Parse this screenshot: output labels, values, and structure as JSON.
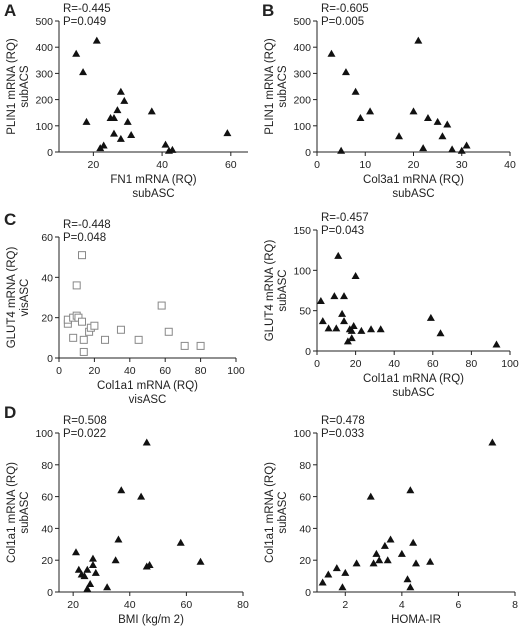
{
  "chart_data": [
    {
      "id": "A1",
      "panel_letter": "A",
      "type": "scatter",
      "marker": "triangle",
      "stats": [
        "R=-0.445",
        "P=0.049"
      ],
      "xlabel": [
        "FN1 mRNA (RQ)",
        "subASC"
      ],
      "ylabel": [
        "PLIN1 mRNA (RQ)",
        "subACS"
      ],
      "xlim": [
        10,
        65
      ],
      "xticks": [
        "20",
        "40",
        "60"
      ],
      "ylim": [
        0,
        500
      ],
      "yticks": [
        "0",
        "100",
        "200",
        "300",
        "400",
        "500"
      ],
      "points": [
        [
          15,
          375
        ],
        [
          17,
          305
        ],
        [
          18,
          115
        ],
        [
          21,
          425
        ],
        [
          22,
          15
        ],
        [
          23,
          25
        ],
        [
          25,
          130
        ],
        [
          26,
          130
        ],
        [
          26,
          70
        ],
        [
          27,
          160
        ],
        [
          28,
          230
        ],
        [
          28,
          50
        ],
        [
          29,
          195
        ],
        [
          30,
          115
        ],
        [
          31,
          65
        ],
        [
          37,
          155
        ],
        [
          41,
          28
        ],
        [
          42,
          5
        ],
        [
          43,
          8
        ],
        [
          59,
          72
        ]
      ]
    },
    {
      "id": "B1",
      "panel_letter": "B",
      "type": "scatter",
      "marker": "triangle",
      "stats": [
        "R=-0.605",
        "P=0.005"
      ],
      "xlabel": [
        "Col3a1 mRNA (RQ)",
        "subASC"
      ],
      "ylabel": [
        "PLIN1 mRNA (RQ)",
        "subACS"
      ],
      "xlim": [
        0,
        40
      ],
      "xticks": [
        "0",
        "10",
        "20",
        "30",
        "40"
      ],
      "ylim": [
        0,
        500
      ],
      "yticks": [
        "0",
        "100",
        "200",
        "300",
        "400",
        "500"
      ],
      "points": [
        [
          3,
          375
        ],
        [
          5,
          5
        ],
        [
          6,
          305
        ],
        [
          8,
          230
        ],
        [
          9,
          130
        ],
        [
          11,
          155
        ],
        [
          17,
          60
        ],
        [
          20,
          155
        ],
        [
          21,
          425
        ],
        [
          22,
          15
        ],
        [
          23,
          130
        ],
        [
          25,
          115
        ],
        [
          26,
          60
        ],
        [
          27,
          105
        ],
        [
          28,
          10
        ],
        [
          30,
          5
        ],
        [
          31,
          25
        ]
      ]
    },
    {
      "id": "C1",
      "panel_letter": "C",
      "type": "scatter",
      "marker": "open-square",
      "stats": [
        "R=-0.448",
        "P=0.048"
      ],
      "xlabel": [
        "Col1a1 mRNA (RQ)",
        "visASC"
      ],
      "ylabel": [
        "GLUT4 mRNA (RQ)",
        "visASC"
      ],
      "xlim": [
        0,
        100
      ],
      "xticks": [
        "0",
        "20",
        "40",
        "60",
        "80",
        "100"
      ],
      "ylim": [
        0,
        60
      ],
      "yticks": [
        "0",
        "20",
        "40",
        "60"
      ],
      "points": [
        [
          5,
          17
        ],
        [
          5,
          19
        ],
        [
          8,
          10
        ],
        [
          8,
          20
        ],
        [
          10,
          21
        ],
        [
          10,
          36
        ],
        [
          11,
          20
        ],
        [
          13,
          51
        ],
        [
          13,
          18
        ],
        [
          14,
          3
        ],
        [
          14,
          9
        ],
        [
          17,
          13
        ],
        [
          18,
          15
        ],
        [
          20,
          16
        ],
        [
          26,
          9
        ],
        [
          35,
          14
        ],
        [
          45,
          9
        ],
        [
          58,
          26
        ],
        [
          62,
          13
        ],
        [
          71,
          6
        ],
        [
          80,
          6
        ]
      ]
    },
    {
      "id": "C2",
      "panel_letter": "",
      "type": "scatter",
      "marker": "triangle",
      "stats": [
        "R=-0.457",
        "P=0.043"
      ],
      "xlabel": [
        "Col1a1 mRNA (RQ)",
        "subASC"
      ],
      "ylabel": [
        "GLUT4 mRNA (RQ)",
        "subASC"
      ],
      "xlim": [
        0,
        100
      ],
      "xticks": [
        "0",
        "20",
        "40",
        "60",
        "80",
        "100"
      ],
      "ylim": [
        0,
        150
      ],
      "yticks": [
        "0",
        "50",
        "100",
        "150"
      ],
      "points": [
        [
          2,
          62
        ],
        [
          3,
          37
        ],
        [
          6,
          28
        ],
        [
          9,
          68
        ],
        [
          10,
          28
        ],
        [
          11,
          118
        ],
        [
          13,
          46
        ],
        [
          14,
          37
        ],
        [
          14,
          68
        ],
        [
          16,
          12
        ],
        [
          17,
          27
        ],
        [
          18,
          16
        ],
        [
          18,
          25
        ],
        [
          19,
          31
        ],
        [
          20,
          93
        ],
        [
          23,
          25
        ],
        [
          28,
          27
        ],
        [
          33,
          27
        ],
        [
          59,
          41
        ],
        [
          64,
          22
        ],
        [
          93,
          8
        ]
      ]
    },
    {
      "id": "D1",
      "panel_letter": "D",
      "type": "scatter",
      "marker": "triangle",
      "stats": [
        "R=0.508",
        "P=0.022"
      ],
      "xlabel": [
        "BMI (kg/m 2)"
      ],
      "ylabel": [
        "Col1a1 mRNA (RQ)",
        "subASC"
      ],
      "xlim": [
        15,
        80
      ],
      "xticks": [
        "20",
        "40",
        "60",
        "80"
      ],
      "ylim": [
        0,
        100
      ],
      "yticks": [
        "0",
        "20",
        "40",
        "60",
        "80",
        "100"
      ],
      "points": [
        [
          21,
          25
        ],
        [
          22,
          14
        ],
        [
          23,
          11
        ],
        [
          24,
          10
        ],
        [
          25,
          14
        ],
        [
          25,
          2
        ],
        [
          26,
          5
        ],
        [
          27,
          21
        ],
        [
          27,
          17
        ],
        [
          28,
          12
        ],
        [
          32,
          3
        ],
        [
          35,
          20
        ],
        [
          36,
          33
        ],
        [
          37,
          64
        ],
        [
          44,
          60
        ],
        [
          46,
          94
        ],
        [
          46,
          16
        ],
        [
          47,
          17
        ],
        [
          58,
          31
        ],
        [
          65,
          19
        ]
      ]
    },
    {
      "id": "D2",
      "panel_letter": "",
      "type": "scatter",
      "marker": "triangle",
      "stats": [
        "R=0.478",
        "P=0.033"
      ],
      "xlabel": [
        "HOMA-IR"
      ],
      "ylabel": [
        "Col1a1 mRNA (RQ)",
        "subASC"
      ],
      "xlim": [
        1,
        8
      ],
      "xticks": [
        "2",
        "4",
        "6",
        "8"
      ],
      "ylim": [
        0,
        100
      ],
      "yticks": [
        "0",
        "20",
        "40",
        "60",
        "80",
        "100"
      ],
      "points": [
        [
          1.2,
          6
        ],
        [
          1.4,
          11
        ],
        [
          1.7,
          15
        ],
        [
          1.9,
          3
        ],
        [
          2.0,
          12
        ],
        [
          2.4,
          18
        ],
        [
          2.9,
          60
        ],
        [
          3.0,
          18
        ],
        [
          3.1,
          24
        ],
        [
          3.2,
          20
        ],
        [
          3.4,
          29
        ],
        [
          3.5,
          20
        ],
        [
          3.6,
          33
        ],
        [
          4.0,
          24
        ],
        [
          4.2,
          8
        ],
        [
          4.3,
          3
        ],
        [
          4.3,
          64
        ],
        [
          4.4,
          31
        ],
        [
          4.5,
          18
        ],
        [
          5.0,
          19
        ],
        [
          7.2,
          94
        ]
      ]
    }
  ]
}
